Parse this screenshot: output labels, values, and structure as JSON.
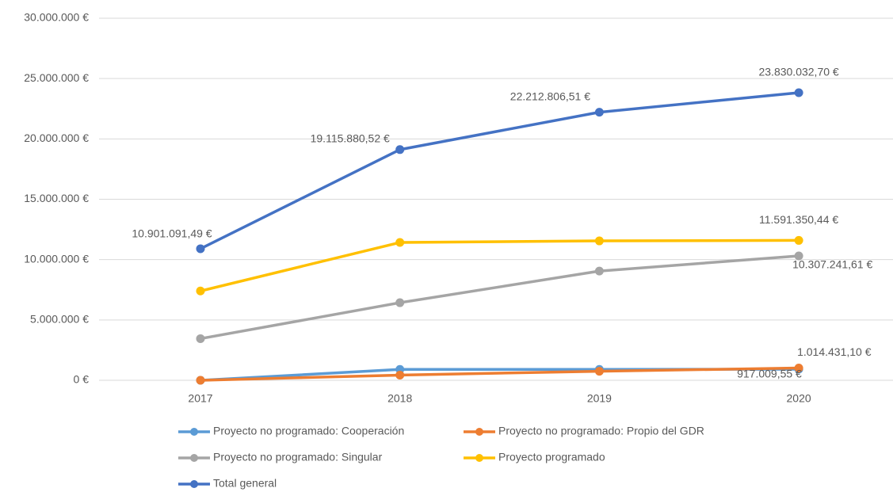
{
  "chart_data": {
    "type": "line",
    "categories": [
      "2017",
      "2018",
      "2019",
      "2020"
    ],
    "ylim": [
      0,
      30000000
    ],
    "yticks": [
      {
        "value": 0,
        "label": "0 €"
      },
      {
        "value": 5000000,
        "label": "5.000.000 €"
      },
      {
        "value": 10000000,
        "label": "10.000.000 €"
      },
      {
        "value": 15000000,
        "label": "15.000.000 €"
      },
      {
        "value": 20000000,
        "label": "20.000.000 €"
      },
      {
        "value": 25000000,
        "label": "25.000.000 €"
      },
      {
        "value": 30000000,
        "label": "30.000.000 €"
      }
    ],
    "grid": true,
    "legend": "bottom",
    "series": [
      {
        "name": "Proyecto no programado: Cooperación",
        "color": "#5b9bd5",
        "values": [
          0,
          900000,
          900000,
          917009.55
        ],
        "value_labels": [
          null,
          null,
          null,
          "917.009,55 €"
        ]
      },
      {
        "name": "Proyecto no programado: Propio del GDR",
        "color": "#ed7d31",
        "values": [
          0,
          430000,
          750000,
          1014431.1
        ],
        "value_labels": [
          null,
          null,
          null,
          "1.014.431,10 €"
        ]
      },
      {
        "name": "Proyecto no programado: Singular",
        "color": "#a5a5a5",
        "values": [
          3450000,
          6430000,
          9050000,
          10307241.61
        ],
        "value_labels": [
          null,
          null,
          null,
          "10.307.241,61 €"
        ]
      },
      {
        "name": "Proyecto programado",
        "color": "#ffc000",
        "values": [
          7400000,
          11420000,
          11550000,
          11591350.44
        ],
        "value_labels": [
          null,
          null,
          null,
          "11.591.350,44 €"
        ]
      },
      {
        "name": "Total general",
        "color": "#4472c4",
        "values": [
          10901091.49,
          19115880.52,
          22212806.51,
          23830032.7
        ],
        "value_labels": [
          "10.901.091,49 €",
          "19.115.880,52 €",
          "22.212.806,51 €",
          "23.830.032,70 €"
        ]
      }
    ]
  }
}
